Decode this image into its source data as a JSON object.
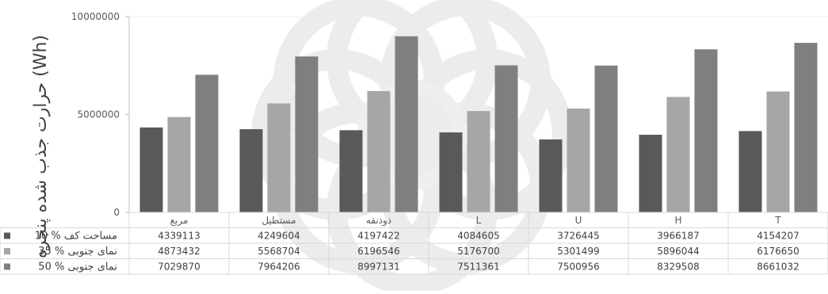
{
  "chart_data": {
    "type": "bar",
    "ylabel": "حرارت جذب شده پنجره (Wh)",
    "ylim": [
      0,
      10000000
    ],
    "yticks": [
      0,
      5000000,
      10000000
    ],
    "ytick_labels": [
      "0",
      "5000000",
      "10000000"
    ],
    "categories": [
      "مربع",
      "مستطیل",
      "ذوذنقه",
      "L",
      "U",
      "H",
      "T"
    ],
    "series": [
      {
        "name": "10 % مساحت کف",
        "color": "#595959",
        "values": [
          4339113,
          4249604,
          4197422,
          4084605,
          3726445,
          3966187,
          4154207
        ],
        "labels": [
          "4339113",
          "4249604",
          "4197422",
          "4084605",
          "3726445",
          "3966187",
          "4154207"
        ]
      },
      {
        "name": "35 % نمای جنوبی",
        "color": "#a6a6a6",
        "values": [
          4873432,
          5568704,
          6196546,
          5176700,
          5301499,
          5896044,
          6176650
        ],
        "labels": [
          "4873432",
          "5568704",
          "6196546",
          "5176700",
          "5301499",
          "5896044",
          "6176650"
        ]
      },
      {
        "name": "50 % نمای جنوبی",
        "color": "#7f7f7f",
        "values": [
          7029870,
          7964206,
          8997131,
          7511361,
          7500956,
          8329508,
          8661032
        ],
        "labels": [
          "7029870",
          "7964206",
          "8997131",
          "7511361",
          "7500956",
          "8329508",
          "8661032"
        ]
      }
    ],
    "grid": false,
    "legend": "data-table"
  }
}
